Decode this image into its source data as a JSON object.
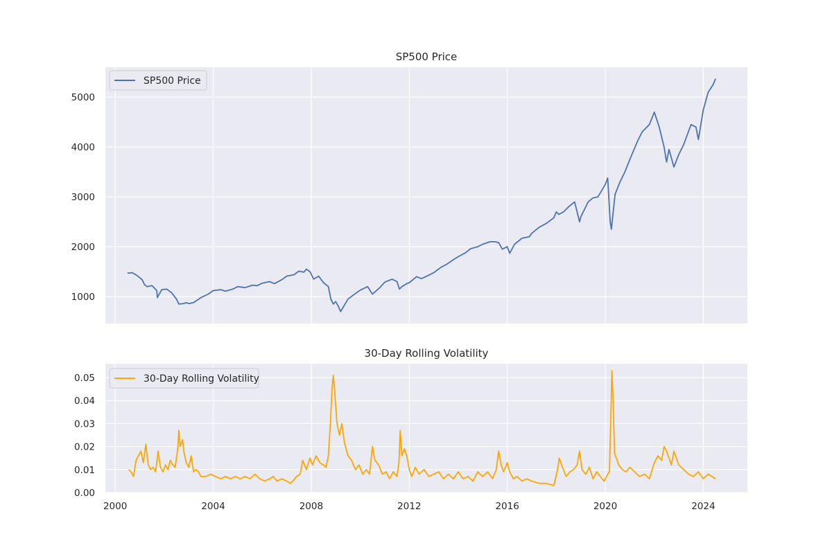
{
  "chart_data": [
    {
      "type": "line",
      "title": "SP500 Price",
      "xlabel": "",
      "ylabel": "",
      "xlim": [
        1999.6,
        2025.8
      ],
      "ylim": [
        460,
        5600
      ],
      "y_ticks": [
        1000,
        2000,
        3000,
        4000,
        5000
      ],
      "x_ticks": [
        2000,
        2004,
        2008,
        2012,
        2016,
        2020,
        2024
      ],
      "x_tick_labels_shown": false,
      "grid": true,
      "legend": "upper-left",
      "series": [
        {
          "name": "SP500 Price",
          "color": "#4c72b0",
          "x": [
            2000.5,
            2000.7,
            2000.9,
            2001.1,
            2001.2,
            2001.3,
            2001.5,
            2001.7,
            2001.72,
            2001.9,
            2002.1,
            2002.3,
            2002.5,
            2002.6,
            2002.8,
            2002.9,
            2003.0,
            2003.2,
            2003.5,
            2003.8,
            2004.0,
            2004.3,
            2004.5,
            2004.8,
            2005.0,
            2005.3,
            2005.6,
            2005.8,
            2006.0,
            2006.3,
            2006.5,
            2006.8,
            2007.0,
            2007.3,
            2007.5,
            2007.7,
            2007.8,
            2007.95,
            2008.1,
            2008.3,
            2008.5,
            2008.7,
            2008.8,
            2008.9,
            2009.0,
            2009.1,
            2009.2,
            2009.5,
            2009.8,
            2010.0,
            2010.3,
            2010.5,
            2010.8,
            2011.0,
            2011.3,
            2011.5,
            2011.6,
            2011.7,
            2011.9,
            2012.0,
            2012.3,
            2012.5,
            2012.8,
            2013.0,
            2013.3,
            2013.5,
            2013.8,
            2014.0,
            2014.3,
            2014.5,
            2014.8,
            2015.0,
            2015.3,
            2015.5,
            2015.65,
            2015.8,
            2016.0,
            2016.1,
            2016.3,
            2016.6,
            2016.9,
            2017.0,
            2017.3,
            2017.6,
            2017.9,
            2018.0,
            2018.1,
            2018.3,
            2018.5,
            2018.75,
            2018.95,
            2019.0,
            2019.3,
            2019.5,
            2019.7,
            2020.0,
            2020.1,
            2020.2,
            2020.25,
            2020.4,
            2020.6,
            2020.8,
            2021.0,
            2021.3,
            2021.5,
            2021.8,
            2022.0,
            2022.2,
            2022.4,
            2022.5,
            2022.6,
            2022.8,
            2023.0,
            2023.2,
            2023.5,
            2023.7,
            2023.8,
            2024.0,
            2024.2,
            2024.4,
            2024.5
          ],
          "values": [
            1470,
            1480,
            1420,
            1340,
            1240,
            1200,
            1220,
            1120,
            980,
            1140,
            1150,
            1080,
            950,
            850,
            860,
            880,
            860,
            880,
            980,
            1050,
            1120,
            1140,
            1110,
            1150,
            1200,
            1180,
            1230,
            1220,
            1270,
            1300,
            1260,
            1340,
            1410,
            1440,
            1510,
            1490,
            1550,
            1500,
            1350,
            1410,
            1280,
            1200,
            950,
            850,
            900,
            810,
            700,
            950,
            1060,
            1130,
            1200,
            1050,
            1180,
            1290,
            1350,
            1300,
            1150,
            1200,
            1260,
            1280,
            1400,
            1360,
            1430,
            1480,
            1590,
            1640,
            1740,
            1800,
            1880,
            1960,
            2000,
            2050,
            2100,
            2100,
            2080,
            1950,
            2000,
            1870,
            2050,
            2170,
            2200,
            2270,
            2390,
            2470,
            2580,
            2700,
            2650,
            2700,
            2800,
            2900,
            2500,
            2600,
            2900,
            2980,
            3000,
            3250,
            3380,
            2500,
            2350,
            3050,
            3300,
            3500,
            3750,
            4100,
            4300,
            4450,
            4700,
            4400,
            4000,
            3700,
            3950,
            3600,
            3850,
            4050,
            4450,
            4400,
            4150,
            4750,
            5100,
            5250,
            5370
          ]
        }
      ]
    },
    {
      "type": "line",
      "title": "30-Day Rolling Volatility",
      "xlabel": "",
      "ylabel": "",
      "xlim": [
        1999.6,
        2025.8
      ],
      "ylim": [
        0.0,
        0.056
      ],
      "y_ticks": [
        0.0,
        0.01,
        0.02,
        0.03,
        0.04,
        0.05
      ],
      "y_tick_labels": [
        "0.00",
        "0.01",
        "0.02",
        "0.03",
        "0.04",
        "0.05"
      ],
      "x_ticks": [
        2000,
        2004,
        2008,
        2012,
        2016,
        2020,
        2024
      ],
      "x_tick_labels": [
        "2000",
        "2004",
        "2008",
        "2012",
        "2016",
        "2020",
        "2024"
      ],
      "grid": true,
      "legend": "upper-left",
      "series": [
        {
          "name": "30-Day Rolling Volatility",
          "color": "#ffa500",
          "x": [
            2000.55,
            2000.65,
            2000.75,
            2000.85,
            2000.95,
            2001.05,
            2001.15,
            2001.25,
            2001.35,
            2001.45,
            2001.55,
            2001.65,
            2001.75,
            2001.85,
            2001.95,
            2002.05,
            2002.15,
            2002.25,
            2002.35,
            2002.45,
            2002.55,
            2002.6,
            2002.65,
            2002.75,
            2002.8,
            2002.9,
            2003.0,
            2003.1,
            2003.2,
            2003.3,
            2003.4,
            2003.5,
            2003.7,
            2003.9,
            2004.1,
            2004.3,
            2004.5,
            2004.7,
            2004.9,
            2005.1,
            2005.3,
            2005.5,
            2005.7,
            2005.9,
            2006.1,
            2006.3,
            2006.45,
            2006.6,
            2006.8,
            2007.0,
            2007.15,
            2007.25,
            2007.4,
            2007.55,
            2007.65,
            2007.8,
            2007.95,
            2008.05,
            2008.2,
            2008.35,
            2008.5,
            2008.6,
            2008.7,
            2008.78,
            2008.85,
            2008.9,
            2008.95,
            2009.05,
            2009.15,
            2009.25,
            2009.35,
            2009.5,
            2009.65,
            2009.8,
            2009.95,
            2010.1,
            2010.25,
            2010.38,
            2010.5,
            2010.6,
            2010.75,
            2010.9,
            2011.05,
            2011.2,
            2011.35,
            2011.5,
            2011.58,
            2011.63,
            2011.7,
            2011.8,
            2011.9,
            2012.0,
            2012.1,
            2012.25,
            2012.4,
            2012.6,
            2012.8,
            2013.0,
            2013.2,
            2013.4,
            2013.6,
            2013.8,
            2014.0,
            2014.2,
            2014.4,
            2014.6,
            2014.8,
            2015.0,
            2015.2,
            2015.4,
            2015.55,
            2015.65,
            2015.75,
            2015.85,
            2016.0,
            2016.1,
            2016.25,
            2016.4,
            2016.6,
            2016.8,
            2017.0,
            2017.3,
            2017.6,
            2017.9,
            2018.05,
            2018.12,
            2018.25,
            2018.4,
            2018.55,
            2018.7,
            2018.85,
            2018.95,
            2019.05,
            2019.2,
            2019.35,
            2019.5,
            2019.65,
            2019.8,
            2019.95,
            2020.1,
            2020.17,
            2020.22,
            2020.27,
            2020.32,
            2020.38,
            2020.45,
            2020.55,
            2020.7,
            2020.85,
            2021.0,
            2021.2,
            2021.4,
            2021.6,
            2021.8,
            2022.0,
            2022.15,
            2022.3,
            2022.4,
            2022.5,
            2022.6,
            2022.7,
            2022.8,
            2022.9,
            2023.0,
            2023.2,
            2023.4,
            2023.6,
            2023.8,
            2024.0,
            2024.2,
            2024.35,
            2024.5
          ],
          "values": [
            0.01,
            0.009,
            0.007,
            0.014,
            0.016,
            0.018,
            0.013,
            0.021,
            0.012,
            0.01,
            0.011,
            0.009,
            0.018,
            0.011,
            0.009,
            0.012,
            0.01,
            0.014,
            0.012,
            0.011,
            0.019,
            0.027,
            0.02,
            0.023,
            0.018,
            0.013,
            0.011,
            0.016,
            0.009,
            0.01,
            0.009,
            0.007,
            0.007,
            0.008,
            0.007,
            0.006,
            0.007,
            0.006,
            0.007,
            0.006,
            0.007,
            0.006,
            0.008,
            0.006,
            0.005,
            0.006,
            0.007,
            0.005,
            0.006,
            0.005,
            0.004,
            0.005,
            0.007,
            0.008,
            0.014,
            0.01,
            0.015,
            0.012,
            0.016,
            0.013,
            0.012,
            0.011,
            0.016,
            0.03,
            0.045,
            0.051,
            0.045,
            0.03,
            0.025,
            0.03,
            0.022,
            0.016,
            0.014,
            0.01,
            0.012,
            0.008,
            0.01,
            0.008,
            0.02,
            0.014,
            0.012,
            0.008,
            0.009,
            0.006,
            0.009,
            0.007,
            0.013,
            0.027,
            0.016,
            0.019,
            0.016,
            0.01,
            0.007,
            0.011,
            0.008,
            0.01,
            0.007,
            0.008,
            0.009,
            0.006,
            0.008,
            0.006,
            0.009,
            0.006,
            0.007,
            0.005,
            0.009,
            0.007,
            0.009,
            0.006,
            0.01,
            0.018,
            0.012,
            0.009,
            0.013,
            0.009,
            0.006,
            0.007,
            0.005,
            0.006,
            0.005,
            0.004,
            0.004,
            0.003,
            0.01,
            0.015,
            0.011,
            0.007,
            0.009,
            0.01,
            0.012,
            0.018,
            0.01,
            0.008,
            0.011,
            0.006,
            0.009,
            0.007,
            0.005,
            0.008,
            0.009,
            0.03,
            0.053,
            0.04,
            0.017,
            0.015,
            0.012,
            0.01,
            0.009,
            0.011,
            0.009,
            0.007,
            0.008,
            0.006,
            0.013,
            0.016,
            0.014,
            0.02,
            0.018,
            0.015,
            0.012,
            0.018,
            0.015,
            0.012,
            0.01,
            0.008,
            0.007,
            0.009,
            0.006,
            0.008,
            0.007,
            0.006
          ]
        }
      ]
    }
  ]
}
